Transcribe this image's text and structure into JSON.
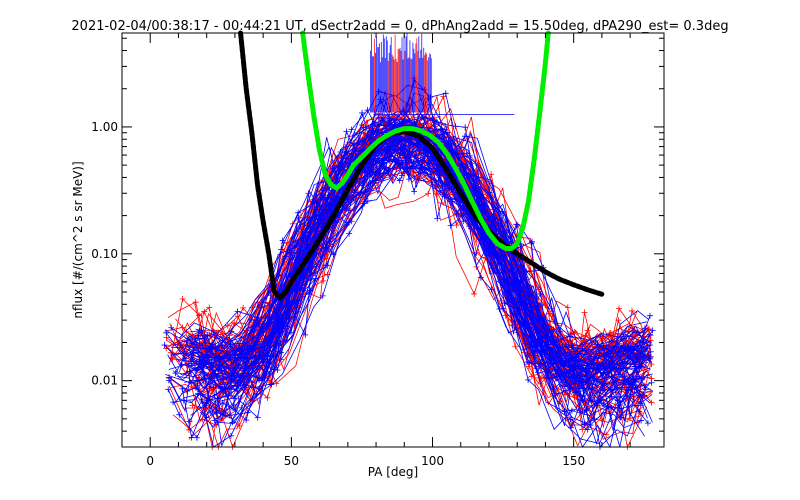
{
  "chart_data": {
    "type": "line",
    "title": "2021-02-04/00:38:17 - 00:44:21 UT, dSectr2add = 0, dPhAng2add = 15.50deg, dPA290_est=    0.3deg",
    "xlabel": "PA [deg]",
    "ylabel": "nflux [#/(cm^2 s sr MeV)]",
    "xlim": [
      -10,
      182
    ],
    "ylim": [
      0.003,
      5.5
    ],
    "yscale": "log",
    "grid": false,
    "x_ticks": [
      {
        "value": 0,
        "label": "0"
      },
      {
        "value": 50,
        "label": "50"
      },
      {
        "value": 100,
        "label": "100"
      },
      {
        "value": 150,
        "label": "150"
      }
    ],
    "y_ticks": [
      {
        "value": 0.01,
        "label": "0.01"
      },
      {
        "value": 0.1,
        "label": "0.10"
      },
      {
        "value": 1.0,
        "label": "1.00"
      }
    ],
    "series": [
      {
        "color": "#000000",
        "style": "thick-dashed",
        "x": [
          32,
          34,
          36,
          38,
          40,
          42,
          43,
          44,
          46,
          48,
          50,
          53,
          56,
          60,
          65,
          70,
          75,
          80,
          85,
          90,
          95,
          100,
          105,
          110,
          115,
          120,
          125,
          130,
          135,
          140,
          145,
          150,
          155,
          160
        ],
        "y": [
          5.5,
          2.0,
          0.9,
          0.35,
          0.18,
          0.1,
          0.07,
          0.05,
          0.045,
          0.05,
          0.06,
          0.075,
          0.095,
          0.13,
          0.2,
          0.32,
          0.5,
          0.72,
          0.88,
          0.92,
          0.85,
          0.68,
          0.46,
          0.3,
          0.2,
          0.15,
          0.12,
          0.1,
          0.085,
          0.072,
          0.063,
          0.057,
          0.052,
          0.048
        ]
      },
      {
        "color": "#00ee00",
        "style": "thick-dashed",
        "x": [
          54,
          56,
          58,
          60,
          62,
          64,
          66,
          68,
          70,
          72,
          75,
          78,
          81,
          84,
          87,
          90,
          93,
          96,
          99,
          102,
          105,
          108,
          111,
          114,
          117,
          120,
          123,
          126,
          128,
          130,
          132,
          134,
          136,
          138,
          140,
          141
        ],
        "y": [
          5.5,
          2.5,
          1.2,
          0.65,
          0.42,
          0.35,
          0.33,
          0.36,
          0.42,
          0.5,
          0.58,
          0.68,
          0.78,
          0.86,
          0.93,
          0.97,
          0.97,
          0.93,
          0.86,
          0.76,
          0.62,
          0.48,
          0.36,
          0.26,
          0.19,
          0.145,
          0.12,
          0.11,
          0.11,
          0.12,
          0.16,
          0.26,
          0.55,
          1.3,
          3.2,
          5.5
        ]
      }
    ]
  }
}
